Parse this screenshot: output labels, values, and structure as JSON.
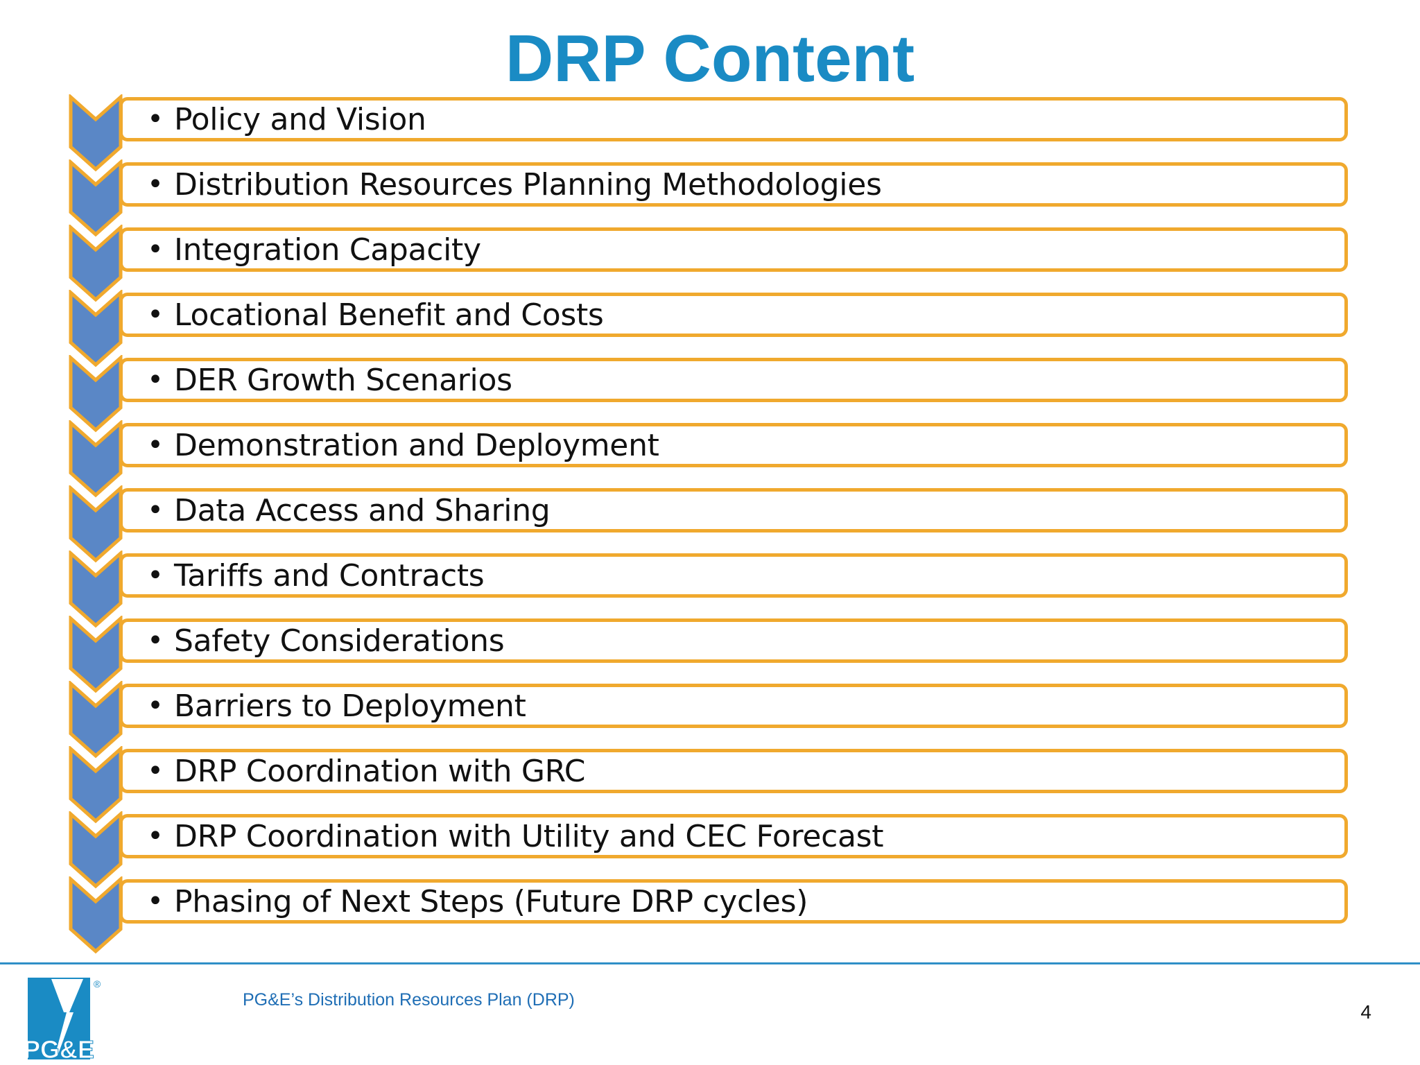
{
  "slide": {
    "title": "DRP Content",
    "items": [
      "Policy and Vision",
      "Distribution Resources Planning Methodologies",
      "Integration Capacity",
      "Locational Benefit and Costs",
      "DER Growth Scenarios",
      "Demonstration and Deployment",
      "Data Access and Sharing",
      "Tariffs and Contracts",
      "Safety Considerations",
      "Barriers to Deployment",
      "DRP Coordination with GRC",
      "DRP Coordination with Utility and CEC Forecast",
      "Phasing of Next Steps (Future DRP cycles)"
    ],
    "bullet": "•"
  },
  "footer": {
    "text": "PG&E’s Distribution Resources Plan (DRP)",
    "page_number": "4",
    "logo_text": "PG&E",
    "logo_mark": "®"
  },
  "colors": {
    "title": "#1a8bc4",
    "chevron_fill": "#5a87c6",
    "chevron_stroke": "#f0a92e",
    "box_border": "#f0a92e",
    "footer_rule": "#2f8fc7",
    "footer_text": "#1f6eb5",
    "logo_blue": "#1a8bc4"
  },
  "icons": {
    "chevron": "chevron-down-icon",
    "logo": "pge-logo"
  }
}
